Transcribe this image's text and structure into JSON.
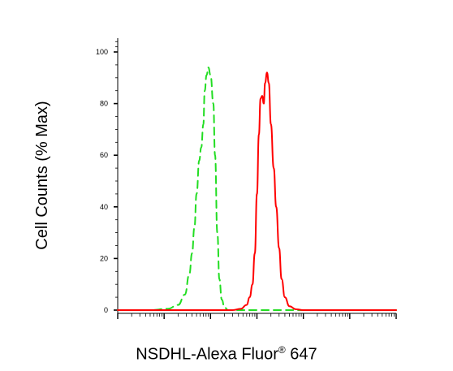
{
  "chart_data": {
    "type": "line",
    "xlabel": "NSDHL-Alexa Fluor",
    "xlabel_superscript": "®",
    "xlabel_suffix": " 647",
    "ylabel": "Cell Counts (% Max)",
    "ylim": [
      0,
      100
    ],
    "yticks": [
      "0",
      "20",
      "40",
      "60",
      "80",
      "100"
    ],
    "x_scale": "log",
    "xlim": [
      1,
      1000000
    ],
    "x_tick_labels_shown": false,
    "grid": false,
    "series": [
      {
        "style": "dashed",
        "color": "#22dd22",
        "x": [
          1,
          5,
          12,
          20,
          28,
          35,
          40,
          45,
          50,
          57,
          63,
          70,
          75,
          82,
          90,
          100,
          115,
          125,
          140,
          155,
          175,
          200,
          240,
          300,
          400,
          1000,
          1000000
        ],
        "y": [
          0,
          0,
          0.5,
          2,
          6,
          14,
          22,
          32,
          45,
          58,
          63,
          72,
          85,
          91,
          94,
          91,
          80,
          60,
          30,
          12,
          4,
          1,
          0,
          0,
          0,
          0,
          0
        ]
      },
      {
        "style": "solid",
        "color": "#ff0000",
        "x": [
          1,
          100,
          300,
          450,
          600,
          700,
          800,
          900,
          1000,
          1100,
          1200,
          1300,
          1400,
          1500,
          1650,
          1800,
          2000,
          2300,
          2600,
          3000,
          3400,
          4000,
          5000,
          7000,
          10000,
          1000000
        ],
        "y": [
          0,
          0,
          0,
          0.5,
          2,
          5,
          10,
          22,
          45,
          68,
          82,
          83,
          80,
          88,
          92,
          88,
          72,
          55,
          40,
          24,
          12,
          5,
          1.5,
          0.3,
          0,
          0
        ]
      }
    ]
  }
}
